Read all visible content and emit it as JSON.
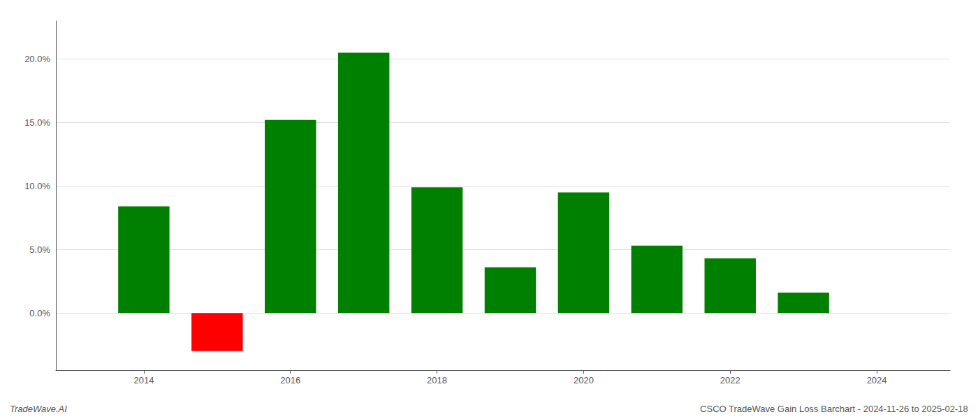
{
  "chart_data": {
    "type": "bar",
    "x": [
      2014,
      2015,
      2016,
      2017,
      2018,
      2019,
      2020,
      2021,
      2022,
      2023
    ],
    "values": [
      8.4,
      -3.0,
      15.2,
      20.5,
      9.9,
      3.6,
      9.5,
      5.3,
      4.3,
      1.6
    ],
    "colors": [
      "#008000",
      "#ff0000",
      "#008000",
      "#008000",
      "#008000",
      "#008000",
      "#008000",
      "#008000",
      "#008000",
      "#008000"
    ],
    "xlim": [
      2012.8,
      2025.0
    ],
    "xticks": [
      2014,
      2016,
      2018,
      2020,
      2022,
      2024
    ],
    "ylim": [
      -4.5,
      23.0
    ],
    "yticks": [
      {
        "value": 0,
        "label": "0.0%"
      },
      {
        "value": 5,
        "label": "5.0%"
      },
      {
        "value": 10,
        "label": "10.0%"
      },
      {
        "value": 15,
        "label": "15.0%"
      },
      {
        "value": 20,
        "label": "20.0%"
      }
    ],
    "grid": true,
    "annotations": [
      "TradeWave.AI",
      "CSCO TradeWave Gain Loss Barchart - 2024-11-26 to 2025-02-18"
    ]
  }
}
